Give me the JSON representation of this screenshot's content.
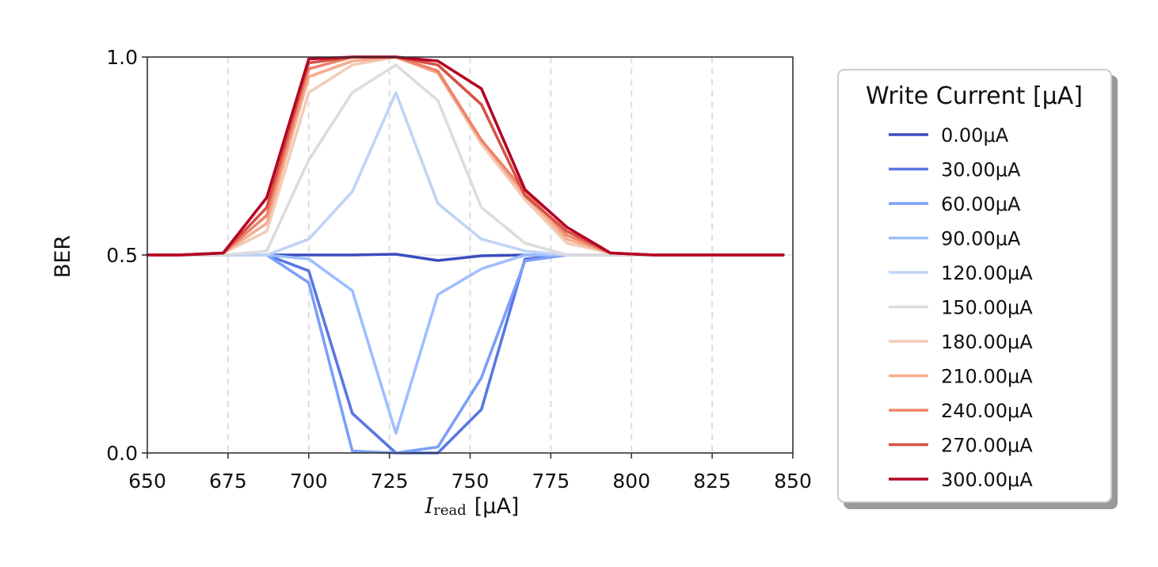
{
  "chart_data": {
    "type": "line",
    "ylabel": "BER",
    "xlabel": {
      "symbol": "I",
      "subscript": "read",
      "unit": "[μA]"
    },
    "xlim": [
      650,
      850
    ],
    "ylim": [
      0.0,
      1.0
    ],
    "x_ticks": [
      "650",
      "675",
      "700",
      "725",
      "750",
      "775",
      "800",
      "825",
      "850"
    ],
    "y_ticks": [
      "0.0",
      "0.5",
      "1.0"
    ],
    "grid": "vertical dashed",
    "legend": {
      "title": "Write Current [μA]",
      "placement": "outside right"
    },
    "x": [
      650,
      660,
      673.5,
      687,
      700,
      713.5,
      727,
      740,
      753.5,
      767,
      780,
      793.5,
      807,
      820,
      833.5,
      847
    ],
    "series": [
      {
        "name": "0.00μA",
        "color": "#3b4cc0",
        "values": [
          0.5,
          0.5,
          0.5,
          0.5,
          0.5,
          0.5,
          0.502,
          0.486,
          0.498,
          0.5,
          0.5,
          0.5,
          0.5,
          0.5,
          0.5,
          0.5
        ]
      },
      {
        "name": "30.00μA",
        "color": "#5977e3",
        "values": [
          0.5,
          0.5,
          0.5,
          0.5,
          0.46,
          0.1,
          0.0,
          0.0,
          0.11,
          0.49,
          0.5,
          0.5,
          0.5,
          0.5,
          0.5,
          0.5
        ]
      },
      {
        "name": "60.00μA",
        "color": "#7b9ff9",
        "values": [
          0.5,
          0.5,
          0.5,
          0.5,
          0.43,
          0.005,
          0.0,
          0.015,
          0.19,
          0.485,
          0.5,
          0.5,
          0.5,
          0.5,
          0.5,
          0.5
        ]
      },
      {
        "name": "90.00μA",
        "color": "#9ebeff",
        "values": [
          0.5,
          0.5,
          0.5,
          0.5,
          0.49,
          0.41,
          0.05,
          0.4,
          0.465,
          0.5,
          0.5,
          0.5,
          0.5,
          0.5,
          0.5,
          0.5
        ]
      },
      {
        "name": "120.00μA",
        "color": "#c0d4f5",
        "values": [
          0.5,
          0.5,
          0.5,
          0.5,
          0.54,
          0.66,
          0.91,
          0.63,
          0.54,
          0.51,
          0.5,
          0.5,
          0.5,
          0.5,
          0.5,
          0.5
        ]
      },
      {
        "name": "150.00μA",
        "color": "#dddcdc",
        "values": [
          0.5,
          0.5,
          0.5,
          0.51,
          0.74,
          0.91,
          0.98,
          0.89,
          0.62,
          0.53,
          0.5,
          0.5,
          0.5,
          0.5,
          0.5,
          0.5
        ]
      },
      {
        "name": "180.00μA",
        "color": "#f2cbb7",
        "values": [
          0.5,
          0.5,
          0.505,
          0.56,
          0.91,
          0.98,
          1.0,
          0.96,
          0.78,
          0.64,
          0.53,
          0.505,
          0.5,
          0.5,
          0.5,
          0.5
        ]
      },
      {
        "name": "210.00μA",
        "color": "#f7ac8e",
        "values": [
          0.5,
          0.5,
          0.505,
          0.58,
          0.95,
          0.99,
          1.0,
          0.96,
          0.79,
          0.65,
          0.54,
          0.505,
          0.5,
          0.5,
          0.5,
          0.5
        ]
      },
      {
        "name": "240.00μA",
        "color": "#ee8468",
        "values": [
          0.5,
          0.5,
          0.505,
          0.6,
          0.97,
          1.0,
          1.0,
          0.965,
          0.79,
          0.66,
          0.55,
          0.505,
          0.5,
          0.5,
          0.5,
          0.5
        ]
      },
      {
        "name": "270.00μA",
        "color": "#d65244",
        "values": [
          0.5,
          0.5,
          0.505,
          0.62,
          0.985,
          1.0,
          1.0,
          0.98,
          0.88,
          0.65,
          0.56,
          0.505,
          0.5,
          0.5,
          0.5,
          0.5
        ]
      },
      {
        "name": "300.00μA",
        "color": "#b40426",
        "values": [
          0.5,
          0.5,
          0.505,
          0.645,
          0.995,
          1.0,
          1.0,
          0.99,
          0.92,
          0.665,
          0.57,
          0.505,
          0.5,
          0.5,
          0.5,
          0.5
        ]
      }
    ]
  }
}
